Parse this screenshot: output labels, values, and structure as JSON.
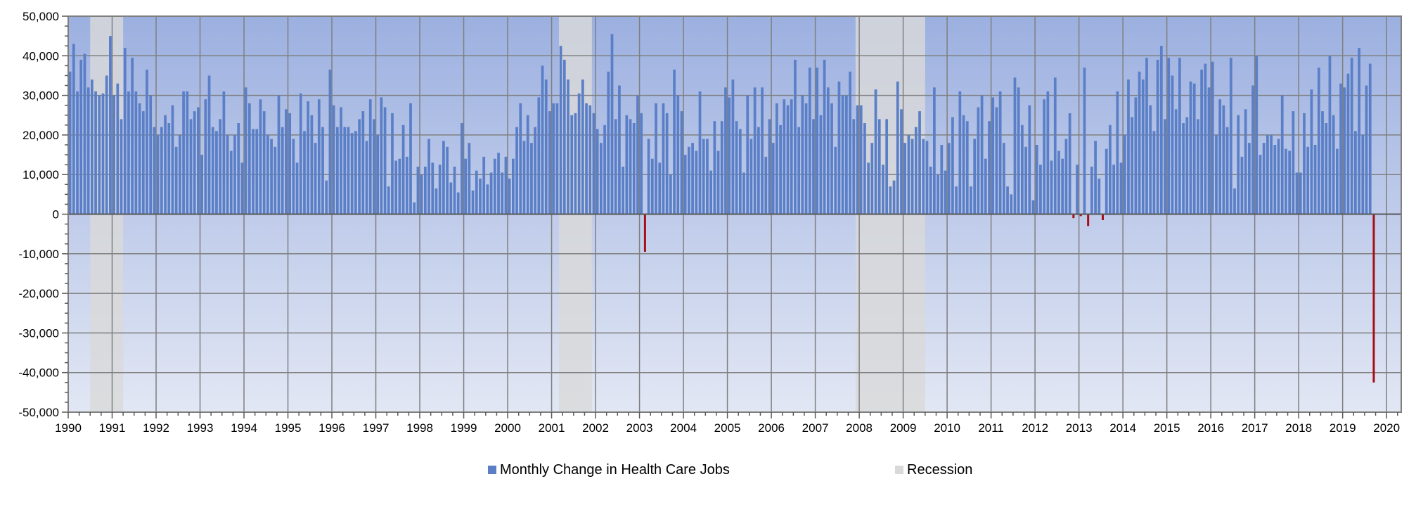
{
  "colors": {
    "bar_positive": "#5b7fc7",
    "bar_negative": "#a50f15",
    "recession": "#d9d9d9",
    "grid": "#7f7f7f",
    "zero_line": "#595959",
    "bg_top": "#9cb0e0",
    "bg_bottom": "#e2e7f4"
  },
  "legend": {
    "series_label": "Monthly Change in Health Care Jobs",
    "recession_label": "Recession"
  },
  "chart_data": {
    "type": "bar",
    "title": "",
    "xlabel": "",
    "ylabel": "",
    "ylim": [
      -50000,
      50000
    ],
    "y_ticks": [
      50000,
      40000,
      30000,
      20000,
      10000,
      0,
      -10000,
      -20000,
      -30000,
      -40000,
      -50000
    ],
    "y_tick_labels": [
      "50,000",
      "40,000",
      "30,000",
      "20,000",
      "10,000",
      "0",
      "-10,000",
      "-20,000",
      "-30,000",
      "-40,000",
      "-50,000"
    ],
    "x_tick_labels": [
      "1990",
      "1991",
      "1992",
      "1993",
      "1994",
      "1995",
      "1996",
      "1997",
      "1998",
      "1999",
      "2000",
      "2001",
      "2002",
      "2003",
      "2004",
      "2005",
      "2006",
      "2007",
      "2008",
      "2009",
      "2010",
      "2011",
      "2012",
      "2013",
      "2014",
      "2015",
      "2016",
      "2017",
      "2018",
      "2019",
      "2020"
    ],
    "grid": true,
    "legend_position": "bottom",
    "start": "1990-01",
    "end": "2020-04",
    "recessions": [
      {
        "start": "1990-07",
        "end": "1991-03"
      },
      {
        "start": "2001-03",
        "end": "2001-11"
      },
      {
        "start": "2007-12",
        "end": "2009-06"
      }
    ],
    "series": [
      {
        "name": "Monthly Change in Health Care Jobs",
        "start": "1990-01",
        "values": [
          36000,
          43000,
          31000,
          39000,
          40500,
          32000,
          34000,
          31000,
          30000,
          30500,
          35000,
          45000,
          30000,
          33000,
          24000,
          42000,
          31000,
          39500,
          31000,
          28000,
          26000,
          36500,
          30000,
          22000,
          20000,
          22000,
          25000,
          23000,
          27500,
          17000,
          20000,
          31000,
          31000,
          24000,
          26000,
          27000,
          15000,
          29000,
          35000,
          22000,
          21000,
          24000,
          31000,
          20000,
          16000,
          20000,
          23000,
          13000,
          32000,
          28000,
          21500,
          21500,
          29000,
          26000,
          20000,
          19000,
          17000,
          30000,
          22000,
          26500,
          25500,
          19000,
          13000,
          30500,
          21000,
          28500,
          25000,
          18000,
          29000,
          22000,
          8500,
          36500,
          27500,
          22000,
          27000,
          22000,
          22000,
          20500,
          21000,
          24000,
          26000,
          18500,
          29000,
          24000,
          20000,
          29500,
          27000,
          7000,
          25500,
          13500,
          14000,
          22500,
          14500,
          28000,
          3000,
          12000,
          10000,
          12000,
          19000,
          13000,
          6500,
          12500,
          18500,
          17000,
          8000,
          12000,
          5500,
          23000,
          14000,
          18000,
          6000,
          11000,
          9000,
          14500,
          7500,
          10500,
          14000,
          15500,
          10500,
          14500,
          9000,
          14000,
          22000,
          28000,
          18500,
          25000,
          18000,
          22000,
          29500,
          37500,
          34000,
          26000,
          28000,
          28000,
          42500,
          39000,
          34000,
          25000,
          25500,
          30500,
          34000,
          28000,
          27500,
          25500,
          21500,
          18000,
          22500,
          36000,
          45500,
          24000,
          32500,
          12000,
          25000,
          24000,
          23000,
          30000,
          25500,
          -9500,
          19000,
          14000,
          28000,
          13000,
          28000,
          25500,
          10000,
          36500,
          30000,
          26000,
          15000,
          17000,
          18000,
          16000,
          31000,
          19000,
          19000,
          11000,
          23500,
          16000,
          23500,
          32000,
          29500,
          34000,
          23500,
          21500,
          10500,
          30000,
          19000,
          32000,
          22000,
          32000,
          14500,
          24000,
          18000,
          28000,
          22500,
          29000,
          27500,
          29000,
          39000,
          22000,
          30000,
          28000,
          37000,
          24000,
          37000,
          25000,
          39000,
          32000,
          28000,
          17000,
          33500,
          30000,
          30000,
          36000,
          24000,
          27500,
          27500,
          23000,
          13000,
          18000,
          31500,
          24000,
          12500,
          24000,
          7000,
          8500,
          33500,
          26500,
          18000,
          20000,
          19000,
          22000,
          26000,
          19000,
          18500,
          12000,
          32000,
          10000,
          17500,
          11000,
          18000,
          24500,
          7000,
          31000,
          25000,
          23500,
          7000,
          19000,
          27000,
          30000,
          14000,
          23500,
          29500,
          27000,
          31000,
          18000,
          7000,
          5000,
          34500,
          32000,
          22500,
          17000,
          27500,
          3500,
          17500,
          12500,
          29000,
          31000,
          13500,
          34500,
          16000,
          14000,
          19000,
          25500,
          -1000,
          12500,
          -500,
          37000,
          -3000,
          12000,
          18500,
          9000,
          -1500,
          16500,
          22500,
          12500,
          31000,
          13000,
          20000,
          34000,
          24500,
          29500,
          36000,
          34000,
          39500,
          27500,
          21000,
          39000,
          42500,
          24000,
          39500,
          35000,
          26500,
          39500,
          23000,
          24500,
          33500,
          33000,
          24000,
          36500,
          38000,
          32000,
          38500,
          20000,
          29000,
          27500,
          22000,
          39500,
          6500,
          25000,
          14500,
          26500,
          18000,
          32500,
          40000,
          15000,
          18000,
          20000,
          20000,
          17500,
          19000,
          30000,
          16500,
          16000,
          26000,
          10500,
          10500,
          25500,
          17000,
          31500,
          17500,
          37000,
          26000,
          23000,
          40000,
          25000,
          16500,
          33000,
          32000,
          35500,
          39500,
          21000,
          42000,
          20000,
          32500,
          38000,
          -42500
        ]
      }
    ]
  }
}
